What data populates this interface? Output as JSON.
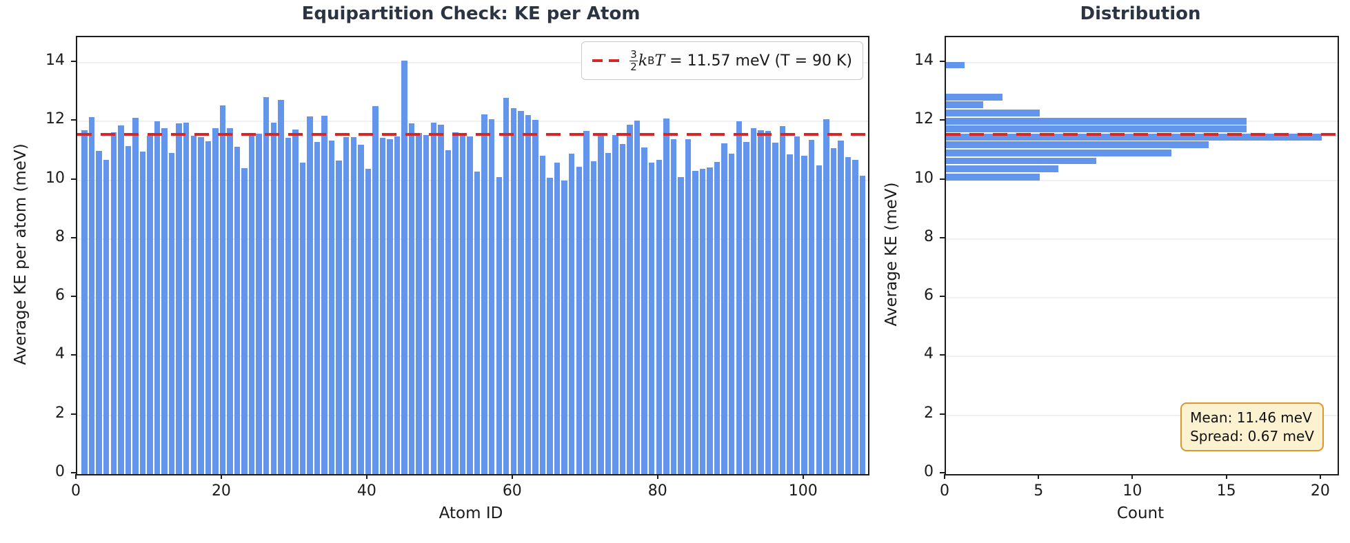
{
  "figure": {
    "background": "#ffffff",
    "title_color": "#2b3442",
    "bar_color": "#6495ED",
    "reference_color": "#d62728",
    "grid_color": "#f0f0f3",
    "annotation_bg": "#fdf2cf",
    "annotation_border": "#dd9530"
  },
  "legend": {
    "frac_num": "3",
    "frac_den": "2",
    "k_symbol": "k",
    "k_subscript": "B",
    "T_symbol": "T",
    "value_text": "= 11.57 meV  (T = 90 K)"
  },
  "annotation": {
    "line1": "Mean: 11.46 meV",
    "line2": "Spread: 0.67 meV"
  },
  "chart_data": [
    {
      "type": "bar",
      "title": "Equipartition Check: KE per Atom",
      "xlabel": "Atom ID",
      "ylabel": "Average KE per atom (meV)",
      "xlim": [
        0,
        108.75
      ],
      "ylim": [
        0,
        14.87
      ],
      "xticks": [
        0,
        20,
        40,
        60,
        80,
        100
      ],
      "yticks": [
        0,
        2,
        4,
        6,
        8,
        10,
        12,
        14
      ],
      "x_start": 1,
      "values": [
        11.71,
        12.15,
        10.99,
        10.69,
        11.63,
        11.87,
        11.16,
        12.13,
        10.98,
        11.51,
        12.01,
        11.77,
        10.94,
        11.93,
        11.97,
        11.51,
        11.46,
        11.34,
        11.77,
        12.55,
        11.77,
        11.13,
        10.42,
        11.62,
        11.58,
        12.84,
        11.95,
        12.73,
        11.45,
        11.73,
        10.6,
        12.18,
        11.3,
        12.2,
        11.35,
        10.67,
        11.48,
        11.47,
        11.2,
        10.38,
        12.52,
        11.45,
        11.4,
        11.49,
        14.07,
        11.93,
        11.62,
        11.53,
        11.95,
        11.89,
        11.02,
        11.63,
        11.57,
        11.49,
        10.3,
        12.25,
        12.09,
        10.12,
        12.8,
        12.46,
        12.35,
        12.21,
        12.06,
        10.84,
        10.08,
        10.6,
        10.0,
        10.9,
        10.45,
        11.67,
        10.64,
        11.53,
        10.94,
        11.53,
        11.23,
        11.89,
        12.03,
        11.12,
        10.59,
        10.7,
        12.11,
        11.41,
        10.1,
        11.4,
        10.32,
        10.38,
        10.44,
        10.63,
        11.26,
        10.9,
        12.01,
        11.3,
        11.77,
        11.7,
        11.67,
        11.28,
        11.85,
        10.88,
        11.49,
        10.83,
        11.37,
        10.51,
        12.07,
        11.1,
        11.35,
        10.78,
        10.7,
        10.16
      ],
      "reference_line": {
        "value": 11.57,
        "label": "3/2 kB T = 11.57 meV (T = 90 K)",
        "style": "dashed"
      },
      "legend_position": "upper right",
      "grid": "horizontal"
    },
    {
      "type": "horizontal-bar-histogram",
      "title": "Distribution",
      "xlabel": "Count",
      "ylabel": "Average KE (meV)",
      "xlim": [
        0,
        20.85
      ],
      "ylim": [
        0,
        14.87
      ],
      "xticks": [
        0,
        5,
        10,
        15,
        20
      ],
      "yticks": [
        0,
        2,
        4,
        6,
        8,
        10,
        12,
        14
      ],
      "bin_centers": [
        10.12,
        10.39,
        10.66,
        10.93,
        11.2,
        11.47,
        11.74,
        12.01,
        12.28,
        12.56,
        12.83,
        13.1,
        13.37,
        13.64,
        13.92
      ],
      "bin_width": 0.2725,
      "counts": [
        5,
        6,
        8,
        12,
        14,
        20,
        16,
        16,
        5,
        2,
        3,
        0,
        0,
        0,
        1
      ],
      "reference_line": {
        "value": 11.57,
        "style": "dashed"
      },
      "mean": 11.46,
      "spread": 0.67,
      "grid": "horizontal"
    }
  ]
}
